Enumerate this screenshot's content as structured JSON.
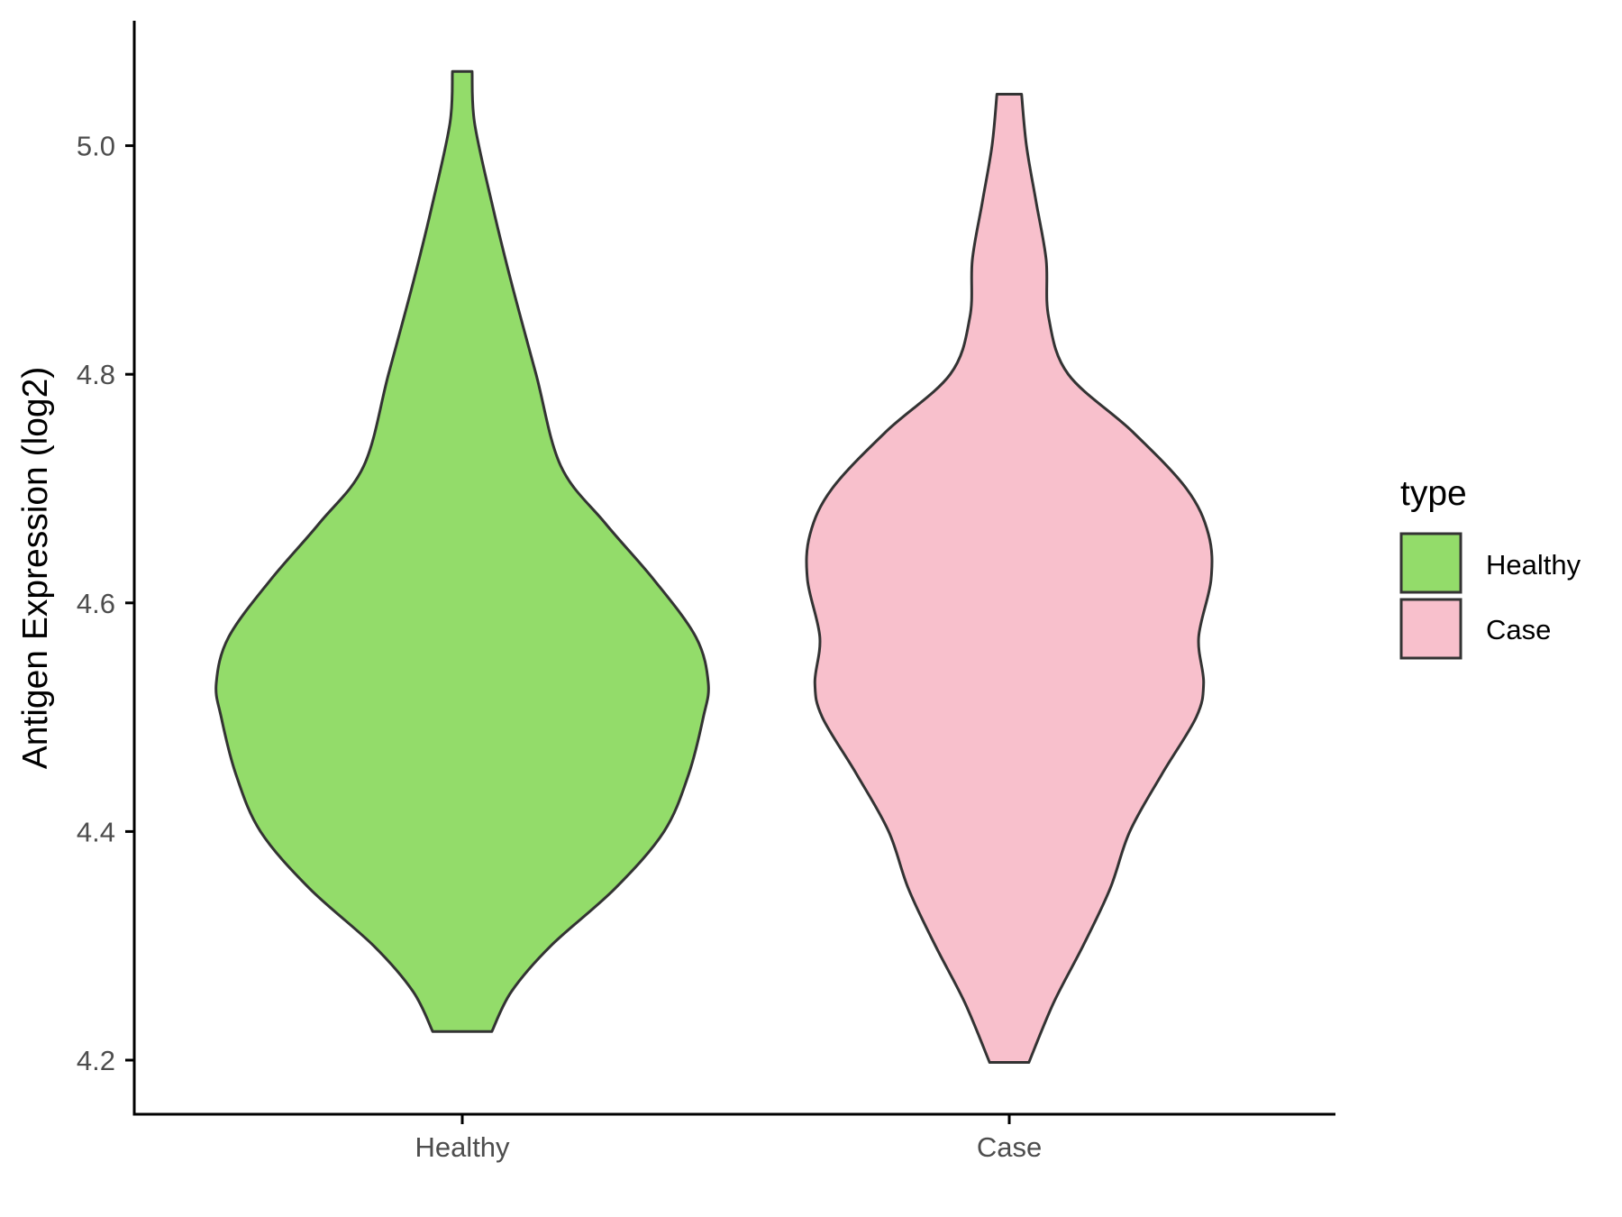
{
  "chart_data": {
    "type": "violin",
    "title": "",
    "xlabel": "",
    "ylabel": "Antigen Expression (log2)",
    "categories": [
      "Healthy",
      "Case"
    ],
    "ylim": [
      4.155,
      5.11
    ],
    "y_ticks": [
      "4.2",
      "4.4",
      "4.6",
      "4.8",
      "5.0"
    ],
    "grid": false,
    "legend": {
      "title": "type",
      "position": "right",
      "entries": [
        "Healthy",
        "Case"
      ]
    },
    "colors": {
      "Healthy": "#93dc6a",
      "Case": "#f8c0cc",
      "outline": "#333333"
    },
    "series": [
      {
        "category": "Healthy",
        "min": 4.225,
        "max": 5.065,
        "density_profile": [
          [
            4.225,
            0.12
          ],
          [
            4.26,
            0.2
          ],
          [
            4.3,
            0.36
          ],
          [
            4.35,
            0.62
          ],
          [
            4.4,
            0.82
          ],
          [
            4.45,
            0.92
          ],
          [
            4.5,
            0.98
          ],
          [
            4.53,
            1.0
          ],
          [
            4.57,
            0.95
          ],
          [
            4.62,
            0.78
          ],
          [
            4.67,
            0.58
          ],
          [
            4.72,
            0.4
          ],
          [
            4.8,
            0.3
          ],
          [
            4.88,
            0.2
          ],
          [
            4.95,
            0.12
          ],
          [
            5.02,
            0.05
          ],
          [
            5.065,
            0.04
          ]
        ]
      },
      {
        "category": "Case",
        "min": 4.198,
        "max": 5.045,
        "density_profile": [
          [
            4.198,
            0.08
          ],
          [
            4.25,
            0.18
          ],
          [
            4.3,
            0.3
          ],
          [
            4.35,
            0.41
          ],
          [
            4.4,
            0.49
          ],
          [
            4.45,
            0.62
          ],
          [
            4.5,
            0.76
          ],
          [
            4.53,
            0.79
          ],
          [
            4.57,
            0.77
          ],
          [
            4.62,
            0.82
          ],
          [
            4.66,
            0.81
          ],
          [
            4.7,
            0.72
          ],
          [
            4.75,
            0.5
          ],
          [
            4.8,
            0.24
          ],
          [
            4.85,
            0.16
          ],
          [
            4.9,
            0.15
          ],
          [
            4.95,
            0.11
          ],
          [
            5.0,
            0.07
          ],
          [
            5.045,
            0.05
          ]
        ]
      }
    ]
  }
}
